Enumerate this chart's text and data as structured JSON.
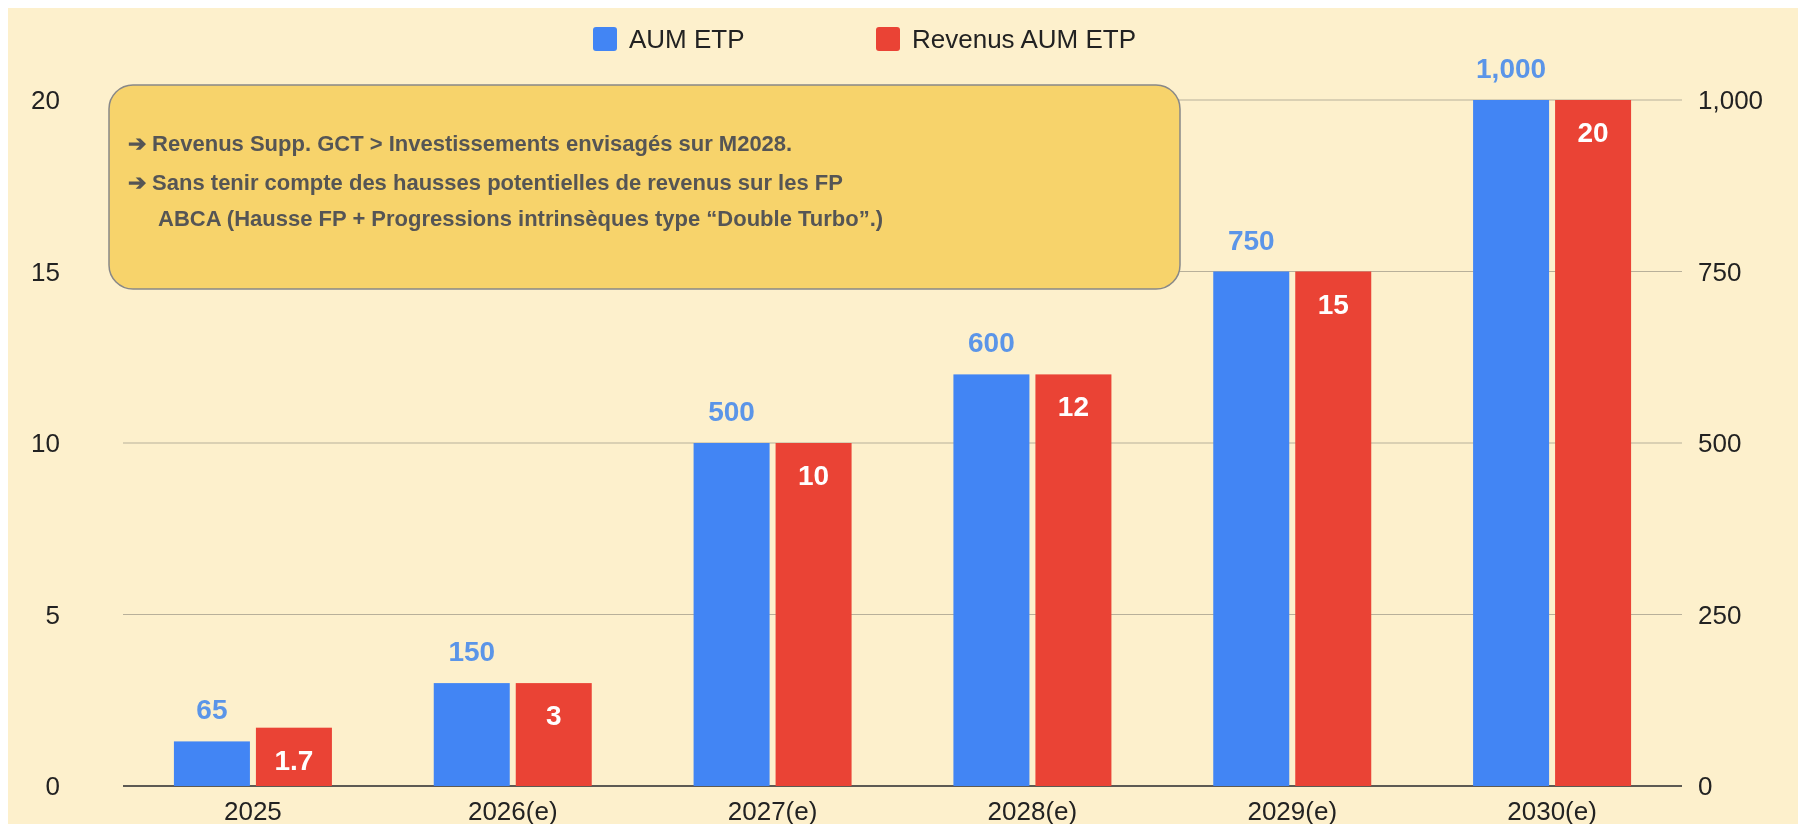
{
  "chart_data": {
    "type": "bar",
    "categories": [
      "2025",
      "2026(e)",
      "2027(e)",
      "2028(e)",
      "2029(e)",
      "2030(e)"
    ],
    "series": [
      {
        "name": "AUM ETP",
        "color": "#4285f4",
        "axis": "y2",
        "values": [
          65,
          150,
          500,
          600,
          750,
          1000
        ],
        "value_labels": [
          "65",
          "150",
          "500",
          "600",
          "750",
          "1,000"
        ]
      },
      {
        "name": "Revenus AUM ETP",
        "color": "#ea4335",
        "values": [
          1.7,
          3,
          10,
          12,
          15,
          20
        ],
        "value_labels": [
          "1.7",
          "3",
          "10",
          "12",
          "15",
          "20"
        ]
      }
    ],
    "ylim": [
      0,
      20
    ],
    "yticks": [
      0,
      5,
      10,
      15,
      20
    ],
    "y2lim": [
      0,
      1000
    ],
    "y2ticks": [
      0,
      250,
      500,
      750,
      "1,000"
    ],
    "grid": "y",
    "legend": "top",
    "annotations": [
      "➔ Revenus Supp. GCT > Investissements envisagés sur M2028.",
      "➔ Sans tenir compte des hausses potentielles de revenus sur les FP ABCA (Hausse FP + Progressions intrinsèques type “Double Turbo”.)"
    ]
  }
}
